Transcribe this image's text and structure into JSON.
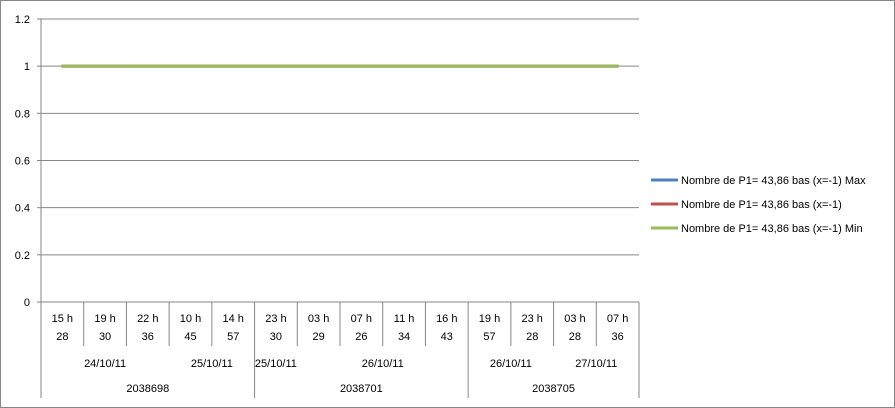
{
  "chart_data": {
    "type": "line",
    "ylim": [
      0,
      1.2
    ],
    "y_ticks": [
      "0",
      "0.2",
      "0.4",
      "0.6",
      "0.8",
      "1",
      "1.2"
    ],
    "y_tick_values": [
      0,
      0.2,
      0.4,
      0.6,
      0.8,
      1,
      1.2
    ],
    "grid": true,
    "legend_position": "right",
    "categories": [
      [
        "15 h",
        "28"
      ],
      [
        "19 h",
        "30"
      ],
      [
        "22 h",
        "36"
      ],
      [
        "10 h",
        "45"
      ],
      [
        "14 h",
        "57"
      ],
      [
        "23 h",
        "30"
      ],
      [
        "03 h",
        "29"
      ],
      [
        "07 h",
        "26"
      ],
      [
        "11 h",
        "34"
      ],
      [
        "16 h",
        "43"
      ],
      [
        "19 h",
        "57"
      ],
      [
        "23 h",
        "28"
      ],
      [
        "03 h",
        "28"
      ],
      [
        "07 h",
        "36"
      ]
    ],
    "date_groups": [
      {
        "label": "24/10/11",
        "start": 0,
        "span": 3
      },
      {
        "label": "25/10/11",
        "start": 3,
        "span": 2
      },
      {
        "label": "25/10/11",
        "start": 5,
        "span": 1
      },
      {
        "label": "26/10/11",
        "start": 6,
        "span": 4
      },
      {
        "label": "26/10/11",
        "start": 10,
        "span": 2
      },
      {
        "label": "27/10/11",
        "start": 12,
        "span": 2
      }
    ],
    "id_groups": [
      {
        "label": "2038698",
        "start": 0,
        "span": 5
      },
      {
        "label": "2038701",
        "start": 5,
        "span": 5
      },
      {
        "label": "2038705",
        "start": 10,
        "span": 4
      }
    ],
    "series": [
      {
        "name": "Nombre de P1= 43,86 bas (x=-1) Max",
        "color": "#4f81bd",
        "values": [
          1,
          1,
          1,
          1,
          1,
          1,
          1,
          1,
          1,
          1,
          1,
          1,
          1,
          1
        ]
      },
      {
        "name": "Nombre de P1= 43,86 bas (x=-1)",
        "color": "#c0504d",
        "values": [
          1,
          1,
          1,
          1,
          1,
          1,
          1,
          1,
          1,
          1,
          1,
          1,
          1,
          1
        ]
      },
      {
        "name": "Nombre de P1= 43,86 bas (x=-1) Min",
        "color": "#9bbb59",
        "values": [
          1,
          1,
          1,
          1,
          1,
          1,
          1,
          1,
          1,
          1,
          1,
          1,
          1,
          1
        ]
      }
    ]
  }
}
